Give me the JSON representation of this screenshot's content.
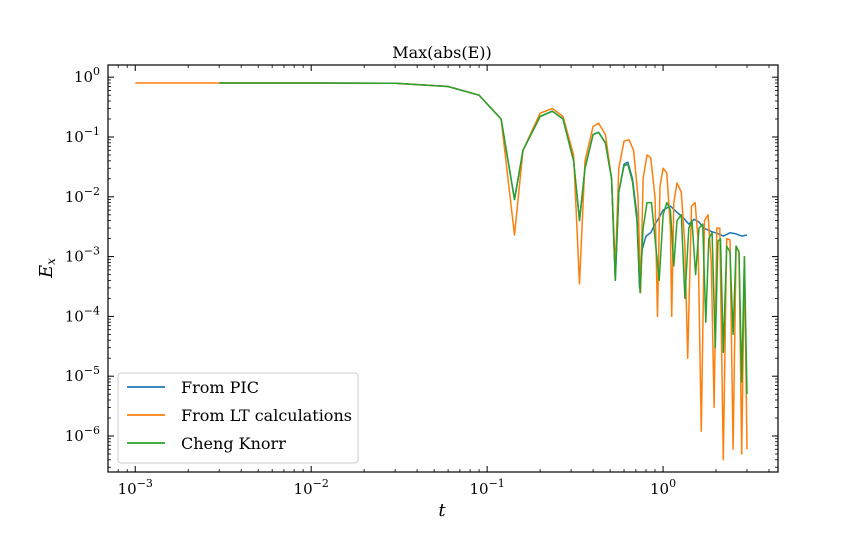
{
  "chart_data": {
    "type": "line",
    "title": "Max(abs(E))",
    "xlabel": "t",
    "ylabel_base": "E",
    "ylabel_sub": "x",
    "xscale": "log",
    "yscale": "log",
    "xlim": [
      0.0007,
      4.5
    ],
    "ylim": [
      2.5e-07,
      1.6
    ],
    "xticks": [
      {
        "value": 0.001,
        "base": "10",
        "exp": "−3"
      },
      {
        "value": 0.01,
        "base": "10",
        "exp": "−2"
      },
      {
        "value": 0.1,
        "base": "10",
        "exp": "−1"
      },
      {
        "value": 1,
        "base": "10",
        "exp": "0"
      }
    ],
    "yticks": [
      {
        "value": 1,
        "base": "10",
        "exp": "0"
      },
      {
        "value": 0.1,
        "base": "10",
        "exp": "−1"
      },
      {
        "value": 0.01,
        "base": "10",
        "exp": "−2"
      },
      {
        "value": 0.001,
        "base": "10",
        "exp": "−3"
      },
      {
        "value": 0.0001,
        "base": "10",
        "exp": "−4"
      },
      {
        "value": 1e-05,
        "base": "10",
        "exp": "−5"
      },
      {
        "value": 1e-06,
        "base": "10",
        "exp": "−6"
      }
    ],
    "legend_position": "lower-left",
    "grid": false,
    "series": [
      {
        "name": "From PIC",
        "color": "#1f77b4",
        "x": [
          0.003,
          0.01,
          0.03,
          0.06,
          0.09,
          0.12,
          0.143,
          0.16,
          0.2,
          0.235,
          0.27,
          0.31,
          0.335,
          0.36,
          0.4,
          0.43,
          0.47,
          0.51,
          0.535,
          0.56,
          0.6,
          0.63,
          0.67,
          0.71,
          0.735,
          0.76,
          0.8,
          0.85,
          0.9,
          0.95,
          1.0,
          1.05,
          1.1,
          1.2,
          1.3,
          1.4,
          1.5,
          1.6,
          1.7,
          1.8,
          1.9,
          2.0,
          2.2,
          2.4,
          2.6,
          2.8,
          3.0
        ],
        "y": [
          0.8,
          0.8,
          0.79,
          0.7,
          0.5,
          0.2,
          0.009,
          0.06,
          0.22,
          0.27,
          0.2,
          0.04,
          0.004,
          0.03,
          0.11,
          0.12,
          0.08,
          0.02,
          0.0004,
          0.012,
          0.035,
          0.038,
          0.02,
          0.005,
          0.0003,
          0.0013,
          0.0022,
          0.0025,
          0.0035,
          0.0045,
          0.006,
          0.0065,
          0.007,
          0.0055,
          0.0045,
          0.0035,
          0.0042,
          0.0038,
          0.003,
          0.0028,
          0.0026,
          0.0025,
          0.0022,
          0.0025,
          0.0024,
          0.0022,
          0.0023
        ]
      },
      {
        "name": "From LT calculations",
        "color": "#ff7f0e",
        "x": [
          0.001,
          0.003,
          0.01,
          0.03,
          0.06,
          0.09,
          0.12,
          0.143,
          0.16,
          0.2,
          0.235,
          0.27,
          0.31,
          0.335,
          0.36,
          0.4,
          0.43,
          0.47,
          0.51,
          0.535,
          0.56,
          0.6,
          0.64,
          0.68,
          0.72,
          0.745,
          0.77,
          0.81,
          0.85,
          0.9,
          0.93,
          0.96,
          1.0,
          1.05,
          1.1,
          1.12,
          1.15,
          1.2,
          1.27,
          1.33,
          1.38,
          1.45,
          1.52,
          1.58,
          1.65,
          1.72,
          1.8,
          1.88,
          1.95,
          2.02,
          2.1,
          2.2,
          2.3,
          2.4,
          2.5,
          2.6,
          2.7,
          2.8,
          2.9,
          3.0
        ],
        "y": [
          0.8,
          0.8,
          0.8,
          0.79,
          0.7,
          0.5,
          0.2,
          0.0023,
          0.06,
          0.25,
          0.3,
          0.22,
          0.05,
          0.00035,
          0.04,
          0.15,
          0.17,
          0.11,
          0.02,
          0.00065,
          0.03,
          0.085,
          0.09,
          0.06,
          0.01,
          0.00025,
          0.02,
          0.05,
          0.045,
          0.01,
          0.0001,
          0.015,
          0.03,
          0.025,
          0.003,
          0.0001,
          0.008,
          0.017,
          0.012,
          0.0015,
          2e-05,
          0.007,
          0.008,
          0.002,
          1.2e-06,
          0.004,
          0.005,
          0.0008,
          3e-06,
          0.003,
          0.003,
          4e-07,
          0.002,
          0.0019,
          6e-07,
          0.0015,
          0.0012,
          5e-07,
          0.001,
          6e-07
        ]
      },
      {
        "name": "Cheng Knorr",
        "color": "#2ca02c",
        "x": [
          0.003,
          0.01,
          0.03,
          0.06,
          0.09,
          0.12,
          0.143,
          0.16,
          0.2,
          0.235,
          0.27,
          0.31,
          0.335,
          0.36,
          0.4,
          0.43,
          0.47,
          0.51,
          0.535,
          0.56,
          0.6,
          0.63,
          0.67,
          0.71,
          0.74,
          0.77,
          0.81,
          0.86,
          0.9,
          0.95,
          1.0,
          1.05,
          1.1,
          1.15,
          1.2,
          1.27,
          1.33,
          1.4,
          1.46,
          1.53,
          1.6,
          1.68,
          1.75,
          1.82,
          1.9,
          1.98,
          2.05,
          2.12,
          2.2,
          2.3,
          2.4,
          2.5,
          2.6,
          2.7,
          2.8,
          2.9,
          3.0
        ],
        "y": [
          0.8,
          0.8,
          0.79,
          0.7,
          0.5,
          0.2,
          0.009,
          0.06,
          0.22,
          0.27,
          0.2,
          0.04,
          0.004,
          0.03,
          0.11,
          0.12,
          0.08,
          0.02,
          0.0004,
          0.012,
          0.033,
          0.035,
          0.018,
          0.004,
          0.00025,
          0.003,
          0.008,
          0.008,
          0.002,
          0.0004,
          0.005,
          0.008,
          0.006,
          0.0007,
          0.004,
          0.005,
          0.0002,
          0.003,
          0.004,
          0.0005,
          0.003,
          0.0035,
          8e-05,
          0.002,
          0.0025,
          3e-05,
          0.0018,
          0.002,
          2.5e-05,
          0.0015,
          0.0012,
          5e-05,
          0.0015,
          0.0012,
          8e-06,
          0.001,
          5e-06
        ]
      }
    ]
  }
}
